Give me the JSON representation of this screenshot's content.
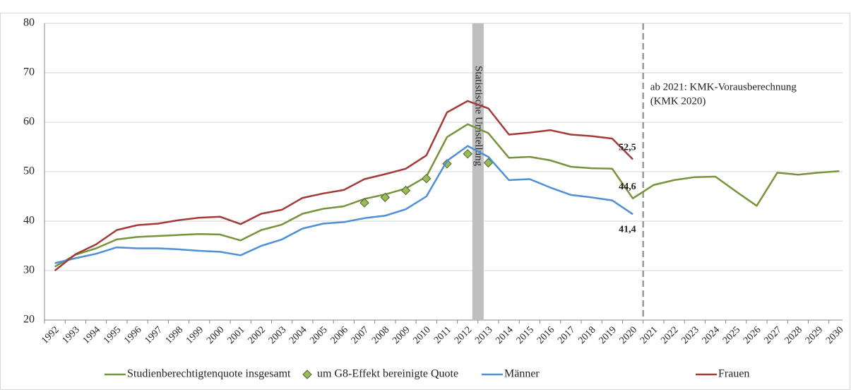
{
  "chart_data": {
    "type": "line",
    "categories": [
      "1992",
      "1993",
      "1994",
      "1995",
      "1996",
      "1997",
      "1998",
      "1999",
      "2000",
      "2001",
      "2002",
      "2003",
      "2004",
      "2005",
      "2006",
      "2007",
      "2008",
      "2009",
      "2010",
      "2011",
      "2012",
      "2013",
      "2014",
      "2015",
      "2016",
      "2017",
      "2018",
      "2019",
      "2020",
      "2021",
      "2022",
      "2023",
      "2024",
      "2025",
      "2026",
      "2027",
      "2028",
      "2029",
      "2030"
    ],
    "series": [
      {
        "name": "Studienberechtigtenquote insgesamt",
        "color": "#77933c",
        "marker": "line",
        "values": [
          30.8,
          33.2,
          34.5,
          36.3,
          36.8,
          37.0,
          37.2,
          37.4,
          37.3,
          36.1,
          38.2,
          39.3,
          41.5,
          42.5,
          43.0,
          44.5,
          45.4,
          46.6,
          49.0,
          57.0,
          59.6,
          57.8,
          52.8,
          53.0,
          52.3,
          51.0,
          50.7,
          50.6,
          44.6,
          47.3,
          48.3,
          48.9,
          49.0,
          46.0,
          43.1,
          49.8,
          49.4,
          49.8,
          50.1
        ],
        "value_labels": [
          null,
          null,
          null,
          null,
          null,
          null,
          null,
          null,
          null,
          null,
          null,
          null,
          null,
          null,
          null,
          null,
          null,
          null,
          null,
          null,
          null,
          null,
          null,
          null,
          null,
          null,
          null,
          null,
          "44,6",
          null,
          null,
          null,
          null,
          null,
          null,
          null,
          null,
          null,
          null
        ]
      },
      {
        "name": "um G8-Effekt bereinigte Quote",
        "color": "#9bbb59",
        "marker": "diamond",
        "values": [
          null,
          null,
          null,
          null,
          null,
          null,
          null,
          null,
          null,
          null,
          null,
          null,
          null,
          null,
          null,
          43.7,
          44.8,
          46.2,
          48.6,
          51.6,
          53.6,
          51.8,
          null,
          null,
          null,
          null,
          null,
          null,
          null,
          null,
          null,
          null,
          null,
          null,
          null,
          null,
          null,
          null,
          null
        ]
      },
      {
        "name": "Männer",
        "color": "#4f8fd6",
        "marker": "line",
        "values": [
          31.5,
          32.5,
          33.4,
          34.7,
          34.5,
          34.5,
          34.3,
          34.0,
          33.8,
          33.1,
          35.0,
          36.3,
          38.5,
          39.5,
          39.8,
          40.6,
          41.1,
          42.4,
          45.0,
          52.2,
          55.2,
          53.0,
          48.3,
          48.5,
          46.8,
          45.3,
          44.8,
          44.2,
          41.4,
          null,
          null,
          null,
          null,
          null,
          null,
          null,
          null,
          null,
          null
        ],
        "value_labels": [
          null,
          null,
          null,
          null,
          null,
          null,
          null,
          null,
          null,
          null,
          null,
          null,
          null,
          null,
          null,
          null,
          null,
          null,
          null,
          null,
          null,
          null,
          null,
          null,
          null,
          null,
          null,
          null,
          "41,4",
          null,
          null,
          null,
          null,
          null,
          null,
          null,
          null,
          null,
          null
        ]
      },
      {
        "name": "Frauen",
        "color": "#a33a3a",
        "marker": "line",
        "values": [
          30.0,
          33.3,
          35.3,
          38.2,
          39.2,
          39.5,
          40.2,
          40.7,
          40.9,
          39.4,
          41.5,
          42.3,
          44.7,
          45.6,
          46.3,
          48.5,
          49.5,
          50.6,
          53.3,
          62.0,
          64.3,
          62.8,
          57.5,
          57.9,
          58.4,
          57.5,
          57.2,
          56.7,
          52.5,
          null,
          null,
          null,
          null,
          null,
          null,
          null,
          null,
          null,
          null
        ],
        "value_labels": [
          null,
          null,
          null,
          null,
          null,
          null,
          null,
          null,
          null,
          null,
          null,
          null,
          null,
          null,
          null,
          null,
          null,
          null,
          null,
          null,
          null,
          null,
          null,
          null,
          null,
          null,
          null,
          null,
          "52,5",
          null,
          null,
          null,
          null,
          null,
          null,
          null,
          null,
          null,
          null
        ]
      }
    ],
    "annotations": [
      "Statistische Umstellung",
      "ab 2021:  KMK-Vorausberechnung",
      "(KMK 2020)"
    ],
    "ylim": [
      20,
      80
    ],
    "yticks": [
      20,
      30,
      40,
      50,
      60,
      70,
      80
    ],
    "grid": true,
    "legend": "bottom"
  }
}
